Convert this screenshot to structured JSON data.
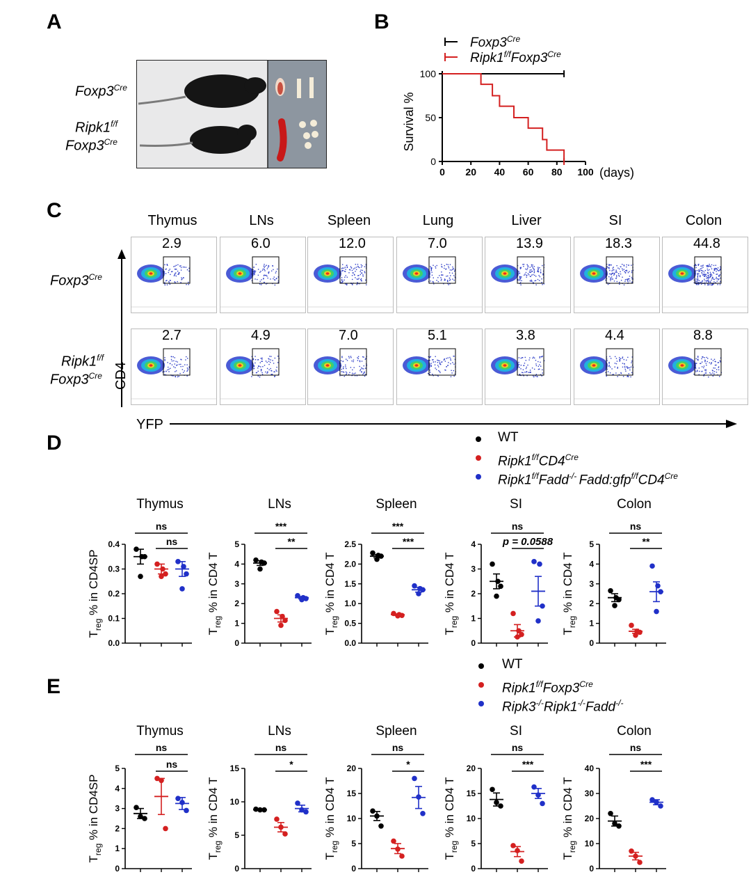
{
  "panels": {
    "a": "A",
    "b": "B",
    "c": "C",
    "d": "D",
    "e": "E"
  },
  "panel_a": {
    "row1_gene": "Foxp3",
    "row1_sup": "Cre",
    "row2_gene_a": "Ripk1",
    "row2_sup_a": "f/f",
    "row2_gene_b": "Foxp3",
    "row2_sup_b": "Cre"
  },
  "panel_b": {
    "legend": [
      {
        "text": "Foxp3",
        "sup": "Cre",
        "color": "#000000"
      },
      {
        "text": "Ripk1",
        "sup": "f/f",
        "text2": "Foxp3",
        "sup2": "Cre",
        "color": "#d42020"
      }
    ],
    "ylabel": "Survival %",
    "xunit": "(days)",
    "yticks": [
      "0",
      "50",
      "100"
    ],
    "xticks": [
      "0",
      "20",
      "40",
      "60",
      "80",
      "100"
    ]
  },
  "panel_c": {
    "tissues": [
      "Thymus",
      "LNs",
      "Spleen",
      "Lung",
      "Liver",
      "SI",
      "Colon"
    ],
    "row1_values": [
      "2.9",
      "6.0",
      "12.0",
      "7.0",
      "13.9",
      "18.3",
      "44.8"
    ],
    "row2_values": [
      "2.7",
      "4.9",
      "7.0",
      "5.1",
      "3.8",
      "4.4",
      "8.8"
    ],
    "row1_label": {
      "gene": "Foxp3",
      "sup": "Cre"
    },
    "row2_label": {
      "gene": "Ripk1",
      "sup": "f/f",
      "gene2": "Foxp3",
      "sup2": "Cre"
    },
    "y_axis": "CD4",
    "x_axis": "YFP"
  },
  "panel_d": {
    "legend": [
      {
        "text": "WT",
        "color": "#000000"
      },
      {
        "text": "Ripk1",
        "sup": "f/f",
        "text2": "CD4",
        "sup2": "Cre",
        "color": "#d42020"
      },
      {
        "text": "Ripk1",
        "sup": "f/f",
        "text2": "Fadd",
        "sup2": "-/- ",
        "text3": "Fadd:gfp",
        "sup3": "f/f",
        "text4": "CD4",
        "sup4": "Cre",
        "color": "#2030c8"
      }
    ]
  },
  "panel_e": {
    "legend": [
      {
        "text": "WT",
        "color": "#000000"
      },
      {
        "text": "Ripk1",
        "sup": "f/f",
        "text2": "Foxp3",
        "sup2": "Cre",
        "color": "#d42020"
      },
      {
        "text": "Ripk3",
        "sup": "-/-",
        "text2": "Ripk1",
        "sup2": "-/-",
        "text3": "Fadd",
        "sup3": "-/-",
        "color": "#2030c8"
      }
    ]
  },
  "colors": {
    "wt": "#000000",
    "red": "#d42020",
    "blue": "#2030c8"
  },
  "chart_data": [
    {
      "type": "line",
      "panel": "B",
      "ylabel": "Survival %",
      "xlabel": "(days)",
      "xlim": [
        0,
        100
      ],
      "ylim": [
        0,
        100
      ],
      "series": [
        {
          "name": "Foxp3 Cre",
          "x": [
            0,
            85
          ],
          "y": [
            100,
            100
          ]
        },
        {
          "name": "Ripk1 f/f Foxp3 Cre",
          "x": [
            0,
            27,
            27,
            35,
            35,
            40,
            40,
            50,
            50,
            60,
            60,
            70,
            70,
            73,
            73,
            85,
            85
          ],
          "y": [
            100,
            100,
            88,
            88,
            75,
            75,
            63,
            63,
            50,
            50,
            38,
            38,
            25,
            25,
            13,
            13,
            0
          ]
        }
      ]
    },
    {
      "type": "scatter",
      "panel": "D",
      "title": "Thymus",
      "ylabel": "T reg % in CD4SP",
      "ylim": [
        0,
        0.4
      ],
      "yticks": [
        "0.0",
        "0.1",
        "0.2",
        "0.3",
        "0.4"
      ],
      "groups": [
        {
          "mean": 0.35,
          "sem": 0.03,
          "points": [
            0.38,
            0.35,
            0.35,
            0.27
          ]
        },
        {
          "mean": 0.3,
          "sem": 0.02,
          "points": [
            0.32,
            0.3,
            0.28,
            0.27
          ]
        },
        {
          "mean": 0.3,
          "sem": 0.03,
          "points": [
            0.33,
            0.31,
            0.28,
            0.22
          ]
        }
      ],
      "sig": [
        {
          "from": 0,
          "to": 2,
          "text": "ns"
        },
        {
          "from": 1,
          "to": 2,
          "text": "ns"
        }
      ]
    },
    {
      "type": "scatter",
      "panel": "D",
      "title": "LNs",
      "ylabel": "T reg % in CD4 T",
      "ylim": [
        0,
        5
      ],
      "yticks": [
        "0",
        "1",
        "2",
        "3",
        "4",
        "5"
      ],
      "groups": [
        {
          "mean": 4.05,
          "sem": 0.12,
          "points": [
            4.2,
            4.1,
            4.05,
            3.75
          ]
        },
        {
          "mean": 1.25,
          "sem": 0.18,
          "points": [
            1.6,
            1.35,
            1.15,
            0.9
          ]
        },
        {
          "mean": 2.3,
          "sem": 0.06,
          "points": [
            2.4,
            2.3,
            2.25,
            2.2
          ]
        }
      ],
      "sig": [
        {
          "from": 0,
          "to": 2,
          "text": "***"
        },
        {
          "from": 1,
          "to": 2,
          "text": "**"
        }
      ]
    },
    {
      "type": "scatter",
      "panel": "D",
      "title": "Spleen",
      "ylabel": "T reg % in CD4 T",
      "ylim": [
        0,
        2.5
      ],
      "yticks": [
        "0.0",
        "0.5",
        "1.0",
        "1.5",
        "2.0",
        "2.5"
      ],
      "groups": [
        {
          "mean": 2.2,
          "sem": 0.04,
          "points": [
            2.28,
            2.22,
            2.2,
            2.12
          ]
        },
        {
          "mean": 0.72,
          "sem": 0.02,
          "points": [
            0.75,
            0.72,
            0.7,
            0.69
          ]
        },
        {
          "mean": 1.35,
          "sem": 0.06,
          "points": [
            1.45,
            1.38,
            1.35,
            1.25
          ]
        }
      ],
      "sig": [
        {
          "from": 0,
          "to": 2,
          "text": "***"
        },
        {
          "from": 1,
          "to": 2,
          "text": "***"
        }
      ]
    },
    {
      "type": "scatter",
      "panel": "D",
      "title": "SI",
      "ylabel": "T reg % in CD4 T",
      "ylim": [
        0,
        4
      ],
      "yticks": [
        "0",
        "1",
        "2",
        "3",
        "4"
      ],
      "groups": [
        {
          "mean": 2.5,
          "sem": 0.3,
          "points": [
            3.2,
            2.5,
            2.3,
            1.9
          ]
        },
        {
          "mean": 0.5,
          "sem": 0.25,
          "points": [
            1.2,
            0.5,
            0.35,
            0.25
          ]
        },
        {
          "mean": 2.1,
          "sem": 0.6,
          "points": [
            3.3,
            3.2,
            1.5,
            0.9
          ]
        }
      ],
      "sig": [
        {
          "from": 0,
          "to": 2,
          "text": "ns"
        },
        {
          "from": 1,
          "to": 2,
          "text": "p = 0.0588"
        }
      ]
    },
    {
      "type": "scatter",
      "panel": "D",
      "title": "Colon",
      "ylabel": "T reg % in CD4 T",
      "ylim": [
        0,
        5
      ],
      "yticks": [
        "0",
        "1",
        "2",
        "3",
        "4",
        "5"
      ],
      "groups": [
        {
          "mean": 2.3,
          "sem": 0.2,
          "points": [
            2.65,
            2.3,
            2.2,
            1.9
          ]
        },
        {
          "mean": 0.6,
          "sem": 0.1,
          "points": [
            0.9,
            0.6,
            0.55,
            0.4
          ]
        },
        {
          "mean": 2.6,
          "sem": 0.5,
          "points": [
            3.9,
            2.9,
            2.6,
            1.6
          ]
        }
      ],
      "sig": [
        {
          "from": 0,
          "to": 2,
          "text": "ns"
        },
        {
          "from": 1,
          "to": 2,
          "text": "**"
        }
      ]
    },
    {
      "type": "scatter",
      "panel": "E",
      "title": "Thymus",
      "ylabel": "T reg % in CD4SP",
      "ylim": [
        0,
        5
      ],
      "yticks": [
        "0",
        "1",
        "2",
        "3",
        "4",
        "5"
      ],
      "groups": [
        {
          "mean": 2.75,
          "sem": 0.25,
          "points": [
            3.05,
            2.6,
            2.5
          ]
        },
        {
          "mean": 3.6,
          "sem": 0.9,
          "points": [
            4.5,
            4.4,
            2.0
          ]
        },
        {
          "mean": 3.25,
          "sem": 0.3,
          "points": [
            3.5,
            3.3,
            2.9
          ]
        }
      ],
      "sig": [
        {
          "from": 0,
          "to": 2,
          "text": "ns"
        },
        {
          "from": 1,
          "to": 2,
          "text": "ns"
        }
      ]
    },
    {
      "type": "scatter",
      "panel": "E",
      "title": "LNs",
      "ylabel": "T reg % in CD4 T",
      "ylim": [
        0,
        15
      ],
      "yticks": [
        "0",
        "5",
        "10",
        "15"
      ],
      "groups": [
        {
          "mean": 8.8,
          "sem": 0.05,
          "points": [
            8.9,
            8.8,
            8.8
          ]
        },
        {
          "mean": 6.2,
          "sem": 0.7,
          "points": [
            7.4,
            6.2,
            5.2
          ]
        },
        {
          "mean": 9.0,
          "sem": 0.5,
          "points": [
            9.8,
            8.8,
            8.5
          ]
        }
      ],
      "sig": [
        {
          "from": 0,
          "to": 2,
          "text": "ns"
        },
        {
          "from": 1,
          "to": 2,
          "text": "*"
        }
      ]
    },
    {
      "type": "scatter",
      "panel": "E",
      "title": "Spleen",
      "ylabel": "T reg % in CD4 T",
      "ylim": [
        0,
        20
      ],
      "yticks": [
        "0",
        "5",
        "10",
        "15",
        "20"
      ],
      "groups": [
        {
          "mean": 10.5,
          "sem": 0.9,
          "points": [
            11.5,
            10.5,
            8.5
          ]
        },
        {
          "mean": 4.0,
          "sem": 1.0,
          "points": [
            5.5,
            3.9,
            2.5
          ]
        },
        {
          "mean": 14.2,
          "sem": 2.2,
          "points": [
            18.0,
            14.3,
            11.0
          ]
        }
      ],
      "sig": [
        {
          "from": 0,
          "to": 2,
          "text": "ns"
        },
        {
          "from": 1,
          "to": 2,
          "text": "*"
        }
      ]
    },
    {
      "type": "scatter",
      "panel": "E",
      "title": "SI",
      "ylabel": "T reg % in CD4 T",
      "ylim": [
        0,
        20
      ],
      "yticks": [
        "0",
        "5",
        "10",
        "15",
        "20"
      ],
      "groups": [
        {
          "mean": 13.8,
          "sem": 1.3,
          "points": [
            15.8,
            13.2,
            12.5
          ]
        },
        {
          "mean": 3.4,
          "sem": 1.0,
          "points": [
            4.6,
            3.6,
            1.5
          ]
        },
        {
          "mean": 15.0,
          "sem": 1.0,
          "points": [
            16.3,
            14.7,
            13.0
          ]
        }
      ],
      "sig": [
        {
          "from": 0,
          "to": 2,
          "text": "ns"
        },
        {
          "from": 1,
          "to": 2,
          "text": "***"
        }
      ]
    },
    {
      "type": "scatter",
      "panel": "E",
      "title": "Colon",
      "ylabel": "T reg % in CD4 T",
      "ylim": [
        0,
        40
      ],
      "yticks": [
        "0",
        "10",
        "20",
        "30",
        "40"
      ],
      "groups": [
        {
          "mean": 19.0,
          "sem": 2.0,
          "points": [
            22.0,
            18.0,
            17.0
          ]
        },
        {
          "mean": 5.0,
          "sem": 1.5,
          "points": [
            7.0,
            5.0,
            2.5
          ]
        },
        {
          "mean": 26.5,
          "sem": 1.0,
          "points": [
            27.5,
            26.5,
            25.0
          ]
        }
      ],
      "sig": [
        {
          "from": 0,
          "to": 2,
          "text": "ns"
        },
        {
          "from": 1,
          "to": 2,
          "text": "***"
        }
      ]
    }
  ]
}
